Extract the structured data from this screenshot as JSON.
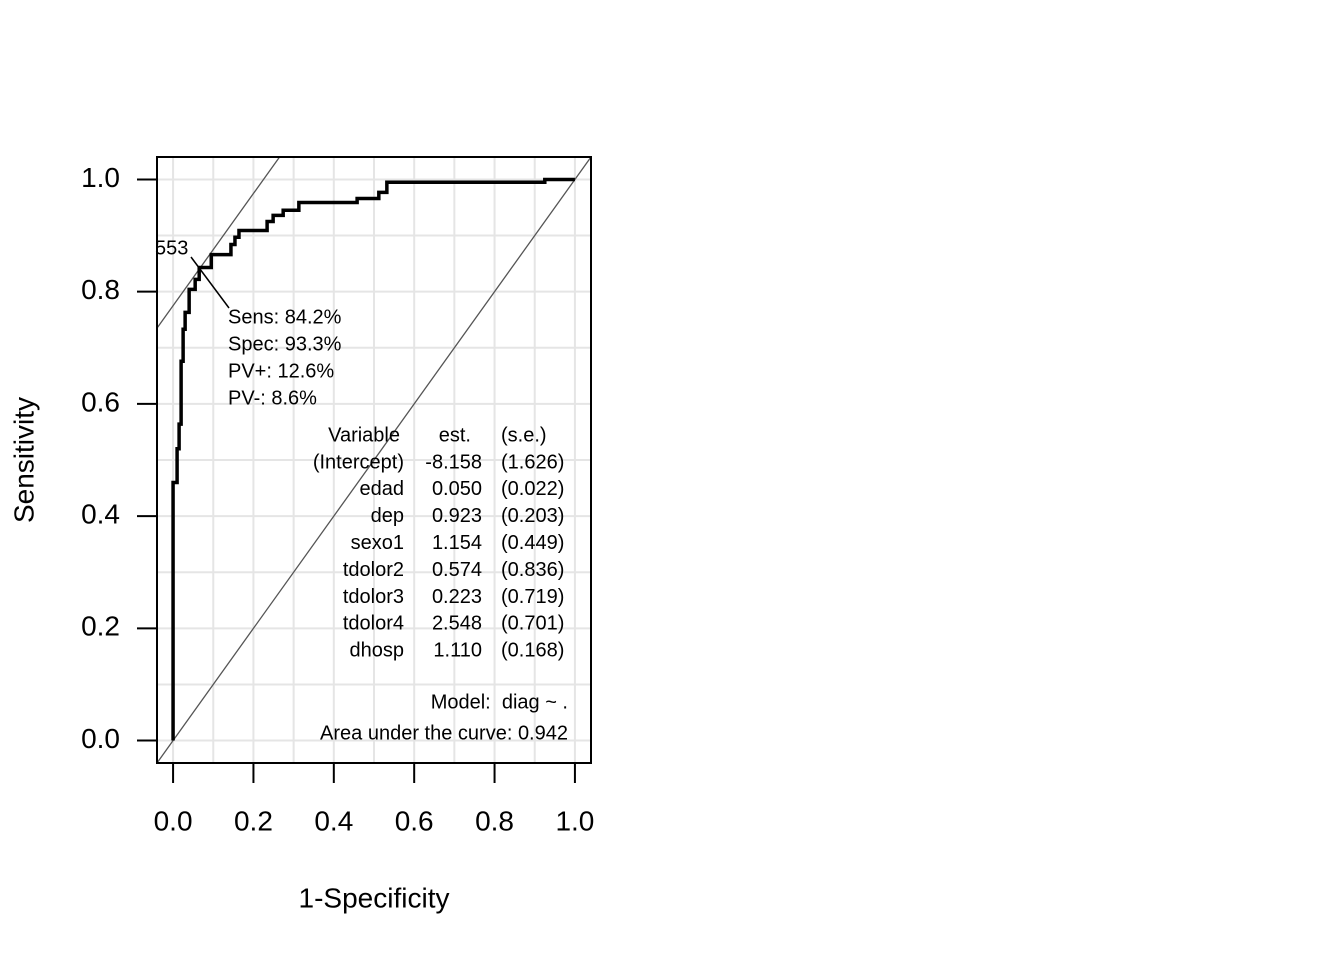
{
  "chart_data": {
    "type": "roc",
    "xlabel": "1-Specificity",
    "ylabel": "Sensitivity",
    "xlim": [
      -0.04,
      1.04
    ],
    "ylim": [
      -0.04,
      1.04
    ],
    "xticks": [
      {
        "value": 0,
        "label": "0.0"
      },
      0.2,
      0.4,
      0.6,
      0.8,
      {
        "value": 1,
        "label": "1.0"
      }
    ],
    "yticks": [
      {
        "value": 0,
        "label": "0.0"
      },
      0.2,
      0.4,
      0.6,
      0.8,
      {
        "value": 1,
        "label": "1.0"
      }
    ],
    "grid": [
      0,
      0.1,
      0.2,
      0.3,
      0.4,
      0.5,
      0.6,
      0.7,
      0.8,
      0.9,
      1
    ],
    "color": "#000000",
    "x": [
      0,
      0,
      0.01,
      0.01,
      0.015,
      0.015,
      0.02,
      0.02,
      0.025,
      0.025,
      0.03,
      0.03,
      0.04,
      0.04,
      0.055,
      0.055,
      0.065,
      0.065,
      0.095,
      0.095,
      0.144,
      0.144,
      0.154,
      0.154,
      0.164,
      0.164,
      0.234,
      0.234,
      0.249,
      0.249,
      0.274,
      0.274,
      0.313,
      0.313,
      0.458,
      0.458,
      0.512,
      0.512,
      0.532,
      0.532,
      0.925,
      0.925,
      1
    ],
    "values": [
      0,
      0.46,
      0.46,
      0.52,
      0.52,
      0.564,
      0.564,
      0.676,
      0.676,
      0.733,
      0.733,
      0.763,
      0.763,
      0.804,
      0.804,
      0.822,
      0.822,
      0.843,
      0.843,
      0.866,
      0.866,
      0.884,
      0.884,
      0.897,
      0.897,
      0.909,
      0.909,
      0.925,
      0.925,
      0.936,
      0.936,
      0.945,
      0.945,
      0.959,
      0.959,
      0.966,
      0.966,
      0.977,
      0.977,
      0.995,
      0.995,
      1,
      1
    ],
    "reference_lines": [
      {
        "intercept": 0,
        "slope": 1
      },
      {
        "intercept": 0.775,
        "slope": 1
      }
    ],
    "cutpoint": {
      "label": "553",
      "x": 0.067,
      "y": 0.842
    },
    "cutpoint_stats": [
      "Sens: 84.2%",
      "Spec: 93.3%",
      "PV+: 12.6%",
      "PV-: 8.6%"
    ],
    "table": {
      "header": [
        "Variable",
        "est.",
        "(s.e.)"
      ],
      "rows": [
        [
          "(Intercept)",
          "-8.158",
          "(1.626)"
        ],
        [
          "edad",
          "0.050",
          "(0.022)"
        ],
        [
          "dep",
          "0.923",
          "(0.203)"
        ],
        [
          "sexo1",
          "1.154",
          "(0.449)"
        ],
        [
          "tdolor2",
          "0.574",
          "(0.836)"
        ],
        [
          "tdolor3",
          "0.223",
          "(0.719)"
        ],
        [
          "tdolor4",
          "2.548",
          "(0.701)"
        ],
        [
          "dhosp",
          "1.110",
          "(0.168)"
        ]
      ]
    },
    "model": "Model:  diag ~ .",
    "auc": "Area under the curve: 0.942"
  }
}
